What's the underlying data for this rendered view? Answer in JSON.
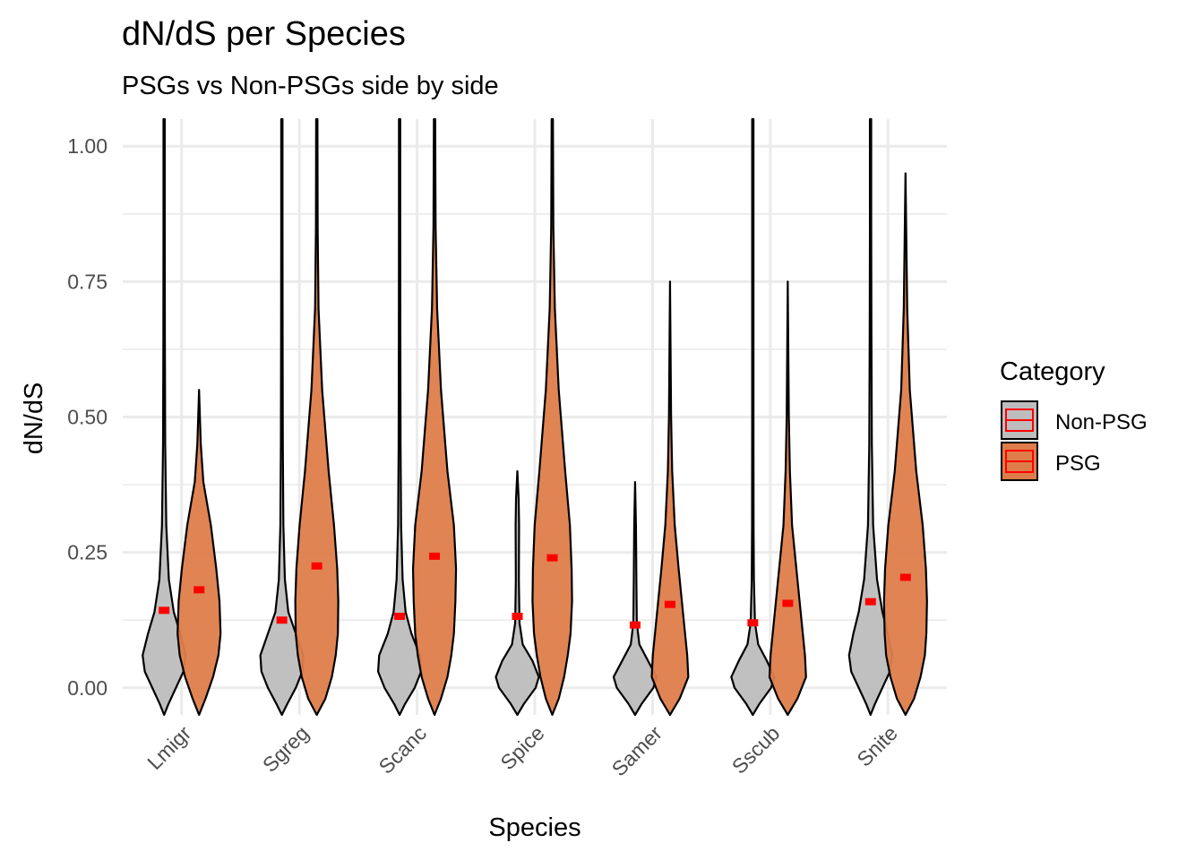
{
  "chart_data": {
    "type": "violin",
    "title": "dN/dS per Species",
    "subtitle": "PSGs vs Non-PSGs side by side",
    "xlabel": "Species",
    "ylabel": "dN/dS",
    "ylim": [
      -0.05,
      1.05
    ],
    "yticks": [
      0.0,
      0.25,
      0.5,
      0.75,
      1.0
    ],
    "ytick_labels": [
      "0.00",
      "0.25",
      "0.50",
      "0.75",
      "1.00"
    ],
    "categories": [
      "Lmigr",
      "Sgreg",
      "Scanc",
      "Spice",
      "Samer",
      "Sscub",
      "Snite"
    ],
    "legend": {
      "title": "Category",
      "position": "right",
      "entries": [
        "Non-PSG",
        "PSG"
      ]
    },
    "colors": {
      "Non-PSG": "#bdbdbd",
      "PSG": "#de7d4a",
      "median": "#ff0000",
      "grid": "#ebebeb"
    },
    "series": [
      {
        "name": "Non-PSG",
        "medians": [
          0.143,
          0.125,
          0.132,
          0.132,
          0.116,
          0.12,
          0.159
        ],
        "top": [
          1.05,
          1.05,
          1.05,
          0.4,
          0.38,
          1.05,
          1.05
        ],
        "violins": [
          [
            [
              -0.05,
              0.0
            ],
            [
              -0.03,
              0.2
            ],
            [
              0.0,
              0.55
            ],
            [
              0.03,
              0.9
            ],
            [
              0.06,
              1.0
            ],
            [
              0.1,
              0.75
            ],
            [
              0.14,
              0.45
            ],
            [
              0.2,
              0.22
            ],
            [
              0.3,
              0.1
            ],
            [
              0.45,
              0.05
            ],
            [
              0.65,
              0.035
            ],
            [
              0.85,
              0.03
            ],
            [
              1.05,
              0.03
            ]
          ],
          [
            [
              -0.05,
              0.0
            ],
            [
              -0.03,
              0.25
            ],
            [
              0.0,
              0.65
            ],
            [
              0.03,
              0.95
            ],
            [
              0.06,
              1.0
            ],
            [
              0.1,
              0.65
            ],
            [
              0.14,
              0.3
            ],
            [
              0.2,
              0.14
            ],
            [
              0.3,
              0.07
            ],
            [
              0.45,
              0.045
            ],
            [
              0.65,
              0.035
            ],
            [
              0.85,
              0.03
            ],
            [
              1.05,
              0.03
            ]
          ],
          [
            [
              -0.05,
              0.0
            ],
            [
              -0.03,
              0.25
            ],
            [
              0.0,
              0.7
            ],
            [
              0.03,
              1.0
            ],
            [
              0.06,
              0.95
            ],
            [
              0.1,
              0.55
            ],
            [
              0.14,
              0.28
            ],
            [
              0.2,
              0.14
            ],
            [
              0.3,
              0.07
            ],
            [
              0.45,
              0.045
            ],
            [
              0.65,
              0.035
            ],
            [
              0.85,
              0.03
            ],
            [
              1.05,
              0.03
            ]
          ],
          [
            [
              -0.05,
              0.0
            ],
            [
              -0.03,
              0.3
            ],
            [
              0.0,
              0.85
            ],
            [
              0.02,
              1.0
            ],
            [
              0.05,
              0.7
            ],
            [
              0.08,
              0.25
            ],
            [
              0.12,
              0.1
            ],
            [
              0.2,
              0.07
            ],
            [
              0.3,
              0.08
            ],
            [
              0.35,
              0.06
            ],
            [
              0.4,
              0.0
            ]
          ],
          [
            [
              -0.05,
              0.0
            ],
            [
              -0.03,
              0.3
            ],
            [
              0.0,
              0.85
            ],
            [
              0.02,
              1.0
            ],
            [
              0.05,
              0.6
            ],
            [
              0.08,
              0.2
            ],
            [
              0.12,
              0.08
            ],
            [
              0.2,
              0.06
            ],
            [
              0.3,
              0.04
            ],
            [
              0.38,
              0.0
            ]
          ],
          [
            [
              -0.05,
              0.0
            ],
            [
              -0.03,
              0.3
            ],
            [
              0.0,
              0.85
            ],
            [
              0.02,
              1.0
            ],
            [
              0.05,
              0.65
            ],
            [
              0.08,
              0.25
            ],
            [
              0.12,
              0.1
            ],
            [
              0.2,
              0.05
            ],
            [
              0.3,
              0.035
            ],
            [
              0.5,
              0.03
            ],
            [
              0.75,
              0.03
            ],
            [
              1.05,
              0.03
            ]
          ],
          [
            [
              -0.05,
              0.0
            ],
            [
              -0.03,
              0.2
            ],
            [
              0.0,
              0.55
            ],
            [
              0.03,
              0.9
            ],
            [
              0.06,
              1.0
            ],
            [
              0.1,
              0.8
            ],
            [
              0.14,
              0.55
            ],
            [
              0.2,
              0.3
            ],
            [
              0.3,
              0.12
            ],
            [
              0.45,
              0.06
            ],
            [
              0.65,
              0.04
            ],
            [
              0.85,
              0.03
            ],
            [
              1.05,
              0.03
            ]
          ]
        ]
      },
      {
        "name": "PSG",
        "medians": [
          0.181,
          0.225,
          0.243,
          0.24,
          0.154,
          0.156,
          0.204
        ],
        "top": [
          0.55,
          1.05,
          1.05,
          1.05,
          0.75,
          0.75,
          0.95
        ],
        "violins": [
          [
            [
              -0.05,
              0.0
            ],
            [
              -0.02,
              0.3
            ],
            [
              0.02,
              0.65
            ],
            [
              0.06,
              0.9
            ],
            [
              0.1,
              1.0
            ],
            [
              0.16,
              0.95
            ],
            [
              0.22,
              0.8
            ],
            [
              0.3,
              0.55
            ],
            [
              0.38,
              0.2
            ],
            [
              0.45,
              0.08
            ],
            [
              0.55,
              0.0
            ]
          ],
          [
            [
              -0.05,
              0.0
            ],
            [
              -0.02,
              0.4
            ],
            [
              0.02,
              0.7
            ],
            [
              0.06,
              0.88
            ],
            [
              0.1,
              0.98
            ],
            [
              0.16,
              1.0
            ],
            [
              0.22,
              0.95
            ],
            [
              0.3,
              0.8
            ],
            [
              0.4,
              0.55
            ],
            [
              0.55,
              0.25
            ],
            [
              0.7,
              0.08
            ],
            [
              0.85,
              0.04
            ],
            [
              1.05,
              0.03
            ]
          ],
          [
            [
              -0.05,
              0.0
            ],
            [
              -0.02,
              0.3
            ],
            [
              0.02,
              0.6
            ],
            [
              0.06,
              0.78
            ],
            [
              0.1,
              0.9
            ],
            [
              0.16,
              0.97
            ],
            [
              0.22,
              1.0
            ],
            [
              0.3,
              0.9
            ],
            [
              0.4,
              0.6
            ],
            [
              0.55,
              0.3
            ],
            [
              0.7,
              0.12
            ],
            [
              0.85,
              0.05
            ],
            [
              1.05,
              0.03
            ]
          ],
          [
            [
              -0.05,
              0.0
            ],
            [
              -0.02,
              0.3
            ],
            [
              0.02,
              0.55
            ],
            [
              0.06,
              0.72
            ],
            [
              0.1,
              0.85
            ],
            [
              0.16,
              0.92
            ],
            [
              0.22,
              0.9
            ],
            [
              0.3,
              0.82
            ],
            [
              0.4,
              0.6
            ],
            [
              0.55,
              0.3
            ],
            [
              0.7,
              0.12
            ],
            [
              0.85,
              0.05
            ],
            [
              1.05,
              0.03
            ]
          ],
          [
            [
              -0.05,
              0.0
            ],
            [
              -0.02,
              0.45
            ],
            [
              0.02,
              0.85
            ],
            [
              0.06,
              0.8
            ],
            [
              0.1,
              0.7
            ],
            [
              0.16,
              0.55
            ],
            [
              0.22,
              0.4
            ],
            [
              0.3,
              0.22
            ],
            [
              0.4,
              0.1
            ],
            [
              0.5,
              0.05
            ],
            [
              0.75,
              0.0
            ]
          ],
          [
            [
              -0.05,
              0.0
            ],
            [
              -0.02,
              0.45
            ],
            [
              0.02,
              0.85
            ],
            [
              0.06,
              0.8
            ],
            [
              0.1,
              0.7
            ],
            [
              0.16,
              0.55
            ],
            [
              0.22,
              0.4
            ],
            [
              0.3,
              0.2
            ],
            [
              0.4,
              0.1
            ],
            [
              0.5,
              0.05
            ],
            [
              0.75,
              0.0
            ]
          ],
          [
            [
              -0.05,
              0.0
            ],
            [
              -0.02,
              0.4
            ],
            [
              0.02,
              0.7
            ],
            [
              0.06,
              0.9
            ],
            [
              0.1,
              0.97
            ],
            [
              0.16,
              1.0
            ],
            [
              0.22,
              0.95
            ],
            [
              0.3,
              0.8
            ],
            [
              0.4,
              0.5
            ],
            [
              0.55,
              0.2
            ],
            [
              0.7,
              0.08
            ],
            [
              0.95,
              0.0
            ]
          ]
        ]
      }
    ]
  }
}
